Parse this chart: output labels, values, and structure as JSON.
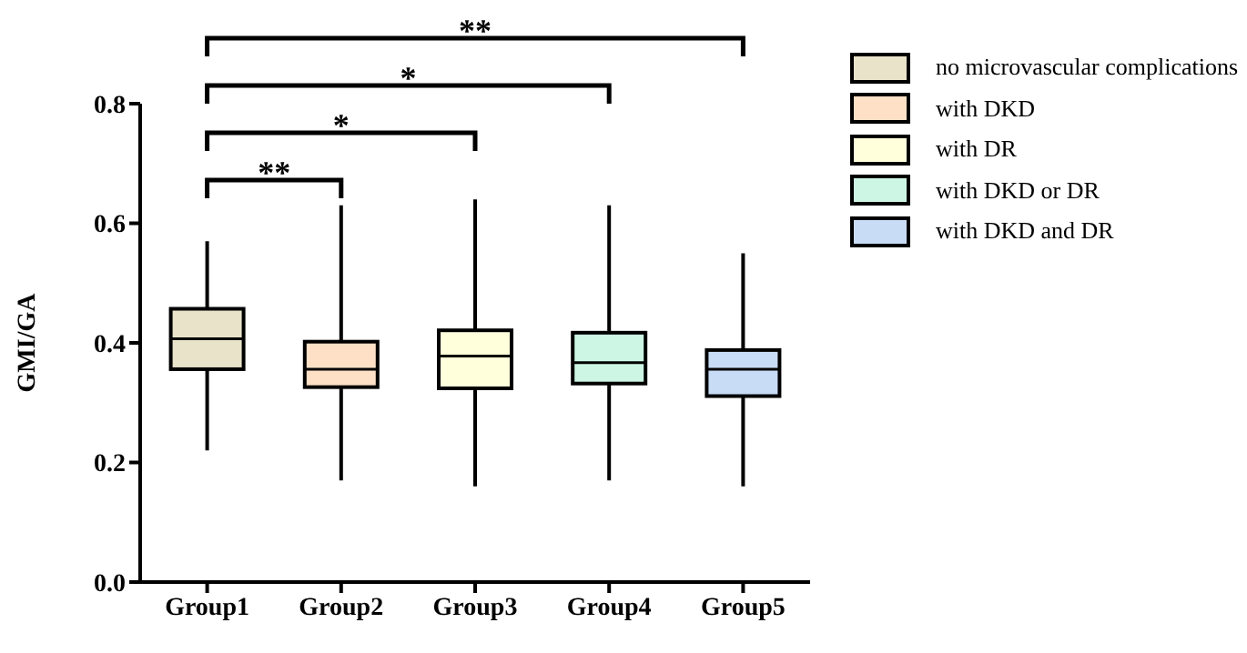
{
  "chart_data": {
    "type": "box",
    "ylabel": "GMI/GA",
    "categories": [
      "Group1",
      "Group2",
      "Group3",
      "Group4",
      "Group5"
    ],
    "series": [
      {
        "name": "no microvascular complications",
        "color": "#e8e3c9",
        "boxes": [
          {
            "low": 0.22,
            "q1": 0.356,
            "median": 0.407,
            "q3": 0.457,
            "high": 0.57
          },
          null,
          null,
          null,
          null
        ]
      },
      {
        "name": "with DKD",
        "color": "#fde0c6",
        "boxes": [
          null,
          {
            "low": 0.17,
            "q1": 0.326,
            "median": 0.356,
            "q3": 0.402,
            "high": 0.63
          },
          null,
          null,
          null
        ]
      },
      {
        "name": "with DR",
        "color": "#ffffdc",
        "boxes": [
          null,
          null,
          {
            "low": 0.16,
            "q1": 0.324,
            "median": 0.378,
            "q3": 0.421,
            "high": 0.64
          },
          null,
          null
        ]
      },
      {
        "name": "with DKD or DR",
        "color": "#cdf7e4",
        "boxes": [
          null,
          null,
          null,
          {
            "low": 0.17,
            "q1": 0.332,
            "median": 0.367,
            "q3": 0.417,
            "high": 0.63
          },
          null
        ]
      },
      {
        "name": "with DKD and DR",
        "color": "#c8dcf6",
        "boxes": [
          null,
          null,
          null,
          null,
          {
            "low": 0.16,
            "q1": 0.311,
            "median": 0.356,
            "q3": 0.388,
            "high": 0.55
          }
        ]
      }
    ],
    "ylim": [
      0,
      0.8
    ],
    "yticks": [
      {
        "value": 0,
        "label": "0.0"
      },
      0.2,
      0.4,
      0.6,
      0.8
    ],
    "legend": "right",
    "annotations": [
      "**",
      "*",
      "*",
      "**"
    ]
  }
}
